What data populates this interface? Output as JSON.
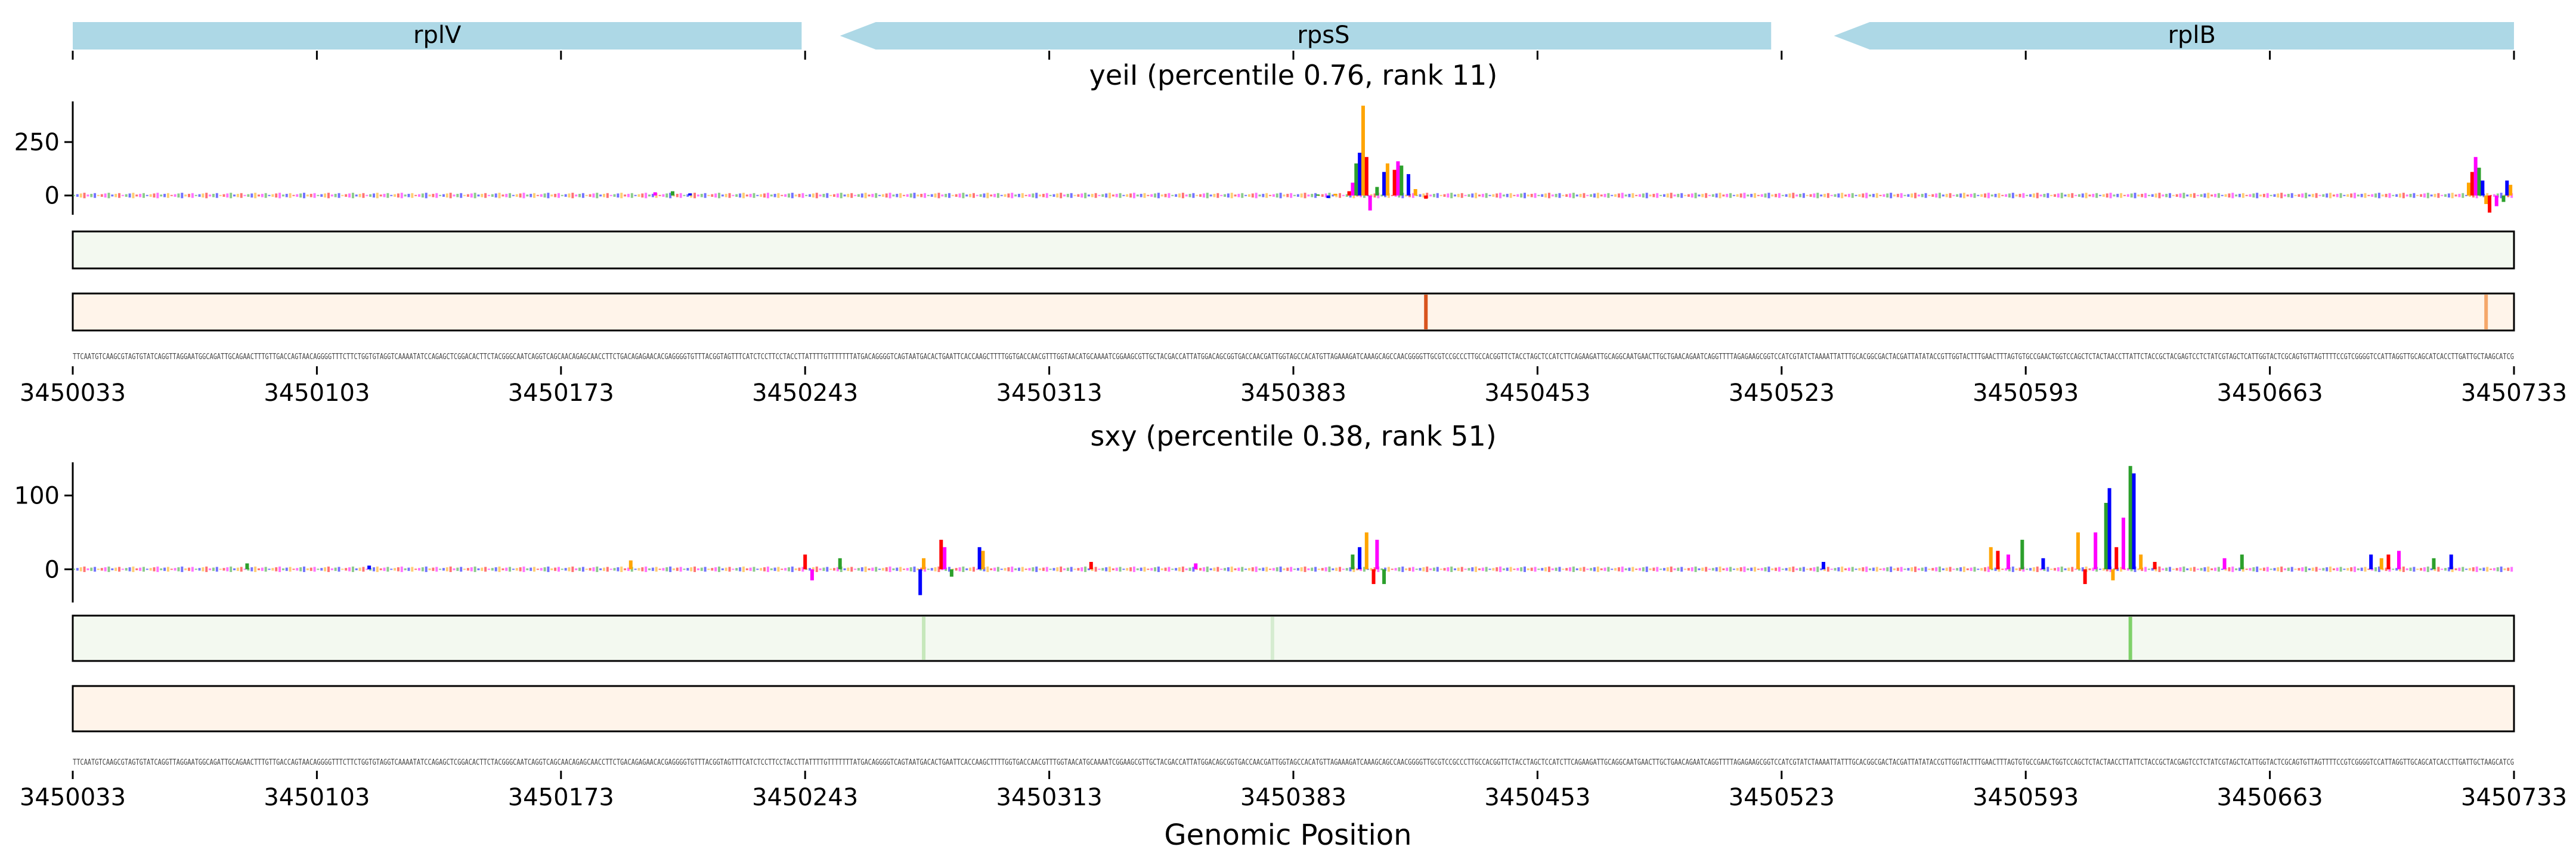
{
  "chart_data": [
    {
      "type": "gene-track",
      "genes": [
        {
          "name": "rplV",
          "start": 3450033,
          "end": 3450242,
          "strand": "+"
        },
        {
          "name": "rpsS",
          "start": 3450253,
          "end": 3450520,
          "strand": "-"
        },
        {
          "name": "rplB",
          "start": 3450538,
          "end": 3450733,
          "strand": "-"
        }
      ],
      "color": "#add8e6"
    },
    {
      "type": "sequence-logo",
      "title": "yeiI (percentile 0.76, rank 11)",
      "x_range": [
        3450033,
        3450733
      ],
      "ylim": [
        -90,
        440
      ],
      "yticks": [
        0,
        250
      ],
      "xticks": [
        3450033,
        3450103,
        3450173,
        3450243,
        3450313,
        3450383,
        3450453,
        3450523,
        3450593,
        3450663,
        3450733
      ],
      "peaks": [
        {
          "x": 3450390,
          "value": 5
        },
        {
          "x": 3450393,
          "value": -12
        },
        {
          "x": 3450395,
          "value": 8
        },
        {
          "x": 3450399,
          "value": 20
        },
        {
          "x": 3450400,
          "value": 60
        },
        {
          "x": 3450401,
          "value": 150
        },
        {
          "x": 3450402,
          "value": 200
        },
        {
          "x": 3450403,
          "value": 420
        },
        {
          "x": 3450404,
          "value": 180
        },
        {
          "x": 3450405,
          "value": -70
        },
        {
          "x": 3450407,
          "value": 40
        },
        {
          "x": 3450409,
          "value": 110
        },
        {
          "x": 3450410,
          "value": 150
        },
        {
          "x": 3450412,
          "value": 120
        },
        {
          "x": 3450413,
          "value": 160
        },
        {
          "x": 3450414,
          "value": 140
        },
        {
          "x": 3450416,
          "value": 100
        },
        {
          "x": 3450418,
          "value": 30
        },
        {
          "x": 3450421,
          "value": -15
        },
        {
          "x": 3450200,
          "value": 15
        },
        {
          "x": 3450205,
          "value": 20
        },
        {
          "x": 3450210,
          "value": 10
        },
        {
          "x": 3450720,
          "value": 60
        },
        {
          "x": 3450721,
          "value": 110
        },
        {
          "x": 3450722,
          "value": 180
        },
        {
          "x": 3450723,
          "value": 130
        },
        {
          "x": 3450724,
          "value": 70
        },
        {
          "x": 3450725,
          "value": -40
        },
        {
          "x": 3450726,
          "value": -80
        },
        {
          "x": 3450728,
          "value": -50
        },
        {
          "x": 3450730,
          "value": -30
        },
        {
          "x": 3450731,
          "value": 70
        },
        {
          "x": 3450732,
          "value": 50
        }
      ],
      "heatmap_tracks": [
        {
          "color": "#f3f9f0",
          "highlights": []
        },
        {
          "color": "#fff4ea",
          "highlights": [
            {
              "x": 3450421,
              "color": "#d9541e"
            },
            {
              "x": 3450725,
              "color": "#f5a76a"
            }
          ]
        }
      ]
    },
    {
      "type": "sequence-logo",
      "title": "sxy (percentile 0.38, rank 51)",
      "x_range": [
        3450033,
        3450733
      ],
      "ylim": [
        -45,
        145
      ],
      "yticks": [
        0,
        100
      ],
      "xticks": [
        3450033,
        3450103,
        3450173,
        3450243,
        3450313,
        3450383,
        3450453,
        3450523,
        3450593,
        3450663,
        3450733
      ],
      "xlabel": "Genomic Position",
      "peaks": [
        {
          "x": 3450083,
          "value": 8
        },
        {
          "x": 3450118,
          "value": 5
        },
        {
          "x": 3450193,
          "value": 12
        },
        {
          "x": 3450243,
          "value": 20
        },
        {
          "x": 3450245,
          "value": -15
        },
        {
          "x": 3450253,
          "value": 15
        },
        {
          "x": 3450276,
          "value": -35
        },
        {
          "x": 3450277,
          "value": 15
        },
        {
          "x": 3450282,
          "value": 40
        },
        {
          "x": 3450283,
          "value": 30
        },
        {
          "x": 3450285,
          "value": -10
        },
        {
          "x": 3450293,
          "value": 30
        },
        {
          "x": 3450294,
          "value": 25
        },
        {
          "x": 3450325,
          "value": 10
        },
        {
          "x": 3450355,
          "value": 8
        },
        {
          "x": 3450400,
          "value": 20
        },
        {
          "x": 3450402,
          "value": 30
        },
        {
          "x": 3450404,
          "value": 50
        },
        {
          "x": 3450406,
          "value": -20
        },
        {
          "x": 3450407,
          "value": 40
        },
        {
          "x": 3450409,
          "value": -20
        },
        {
          "x": 3450535,
          "value": 10
        },
        {
          "x": 3450583,
          "value": 30
        },
        {
          "x": 3450585,
          "value": 25
        },
        {
          "x": 3450588,
          "value": 20
        },
        {
          "x": 3450592,
          "value": 40
        },
        {
          "x": 3450598,
          "value": 15
        },
        {
          "x": 3450608,
          "value": 50
        },
        {
          "x": 3450610,
          "value": -20
        },
        {
          "x": 3450613,
          "value": 50
        },
        {
          "x": 3450616,
          "value": 90
        },
        {
          "x": 3450617,
          "value": 110
        },
        {
          "x": 3450618,
          "value": -15
        },
        {
          "x": 3450619,
          "value": 30
        },
        {
          "x": 3450621,
          "value": 70
        },
        {
          "x": 3450623,
          "value": 140
        },
        {
          "x": 3450624,
          "value": 130
        },
        {
          "x": 3450626,
          "value": 20
        },
        {
          "x": 3450630,
          "value": 10
        },
        {
          "x": 3450650,
          "value": 15
        },
        {
          "x": 3450655,
          "value": 20
        },
        {
          "x": 3450692,
          "value": 20
        },
        {
          "x": 3450695,
          "value": 15
        },
        {
          "x": 3450697,
          "value": 20
        },
        {
          "x": 3450700,
          "value": 25
        },
        {
          "x": 3450710,
          "value": 15
        },
        {
          "x": 3450715,
          "value": 20
        }
      ],
      "heatmap_tracks": [
        {
          "color": "#f3f9f0",
          "highlights": [
            {
              "x": 3450277,
              "color": "#c6e8bb"
            },
            {
              "x": 3450377,
              "color": "#d5ecd0"
            },
            {
              "x": 3450623,
              "color": "#7fd16a"
            }
          ]
        },
        {
          "color": "#fff4ea",
          "highlights": []
        }
      ]
    }
  ],
  "logo_colors": {
    "A": "#2ca02c",
    "C": "#0000ff",
    "G": "#ffa500",
    "T": "#ff0000",
    "extra": "#ff00ff"
  },
  "sequence_track_1": "TTCAATGTCAAGCGTAGTGTATCAGGTTAGGAATGGCAGATTGCAGAACTTTGTTGACCAGTAACAGGGGTTTCTTCTGGTGTAGGTCAAAATATCCAGAGCTCGGACACTTCTACGGGCAATCAGGTCAGCAACAGAGCAACCTTCTGACAGAGAACACGAGGGGTGTTTACGGTAGTTTCATCTCCTTCCTACCTTATTTTGTTTTTTTATGACAGGGGTCAGTAATGACACTGAATTCACCAAGCTTTTGGTGACCAACGTTTGGTAACATGCAAAATCGGAAGCGTTGCTACGACCATTATGGACAGCGGTGACCAACGATTGGTAGCCACATGTTAGAAAGATCAAAGCAGCCAACGGGGTTGCGTCCGCCCTTGCCACGGTTCTACCTAGCTCCATCTTCAGAAGATTGCAGGCAATGAACTTGCTGAACAGAATCAGGTTTTAGAGAAGCGGTCCATCGTATCTAAAATTATTTGCACGGCGACTACGATTATATACCGTTGGTACTTTGAACTTTAGTGTGCCGAACTGGTCCAGCTCTACTAACCTTATTCTACCGCTACGAGTCCTCTATCGTAGCTCATTGGTACTCGCAGTGTTAGTTTTCCGTCGGGGTCCATTAGGTTGCAGCATCACCTTGATTGCTAAGCATCG",
  "sequence_track_2": "TTCAATGTCAAGCGTAGTGTATCAGGTTAGGAATGGCAGATTGCAGAACTTTGTTGACCAGTAACAGGGGTTTCTTCTGGTGTAGGTCAAAATATCCAGAGCTCGGACACTTCTACGGGCAATCAGGTCAGCAACAGAGCAACCTTCTGACAGAGAACACGAGGGGTGTTTACGGTAGTTTCATCTCCTTCCTACCTTATTTTGTTTTTTTATGACAGGGGTCAGTAATGACACTGAATTCACCAAGCTTTTGGTGACCAACGTTTGGTAACATGCAAAATCGGAAGCGTTGCTACGACCATTATGGACAGCGGTGACCAACGATTGGTAGCCACATGTTAGAAAGATCAAAGCAGCCAACGGGGTTGCGTCCGCCCTTGCCACGGTTCTACCTAGCTCCATCTTCAGAAGATTGCAGGCAATGAACTTGCTGAACAGAATCAGGTTTTAGAGAAGCGGTCCATCGTATCTAAAATTATTTGCACGGCGACTACGATTATATACCGTTGGTACTTTGAACTTTAGTGTGCCGAACTGGTCCAGCTCTACTAACCTTATTCTACCGCTACGAGTCCTCTATCGTAGCTCATTGGTACTCGCAGTGTTAGTTTTCCGTCGGGGTCCATTAGGTTGCAGCATCACCTTGATTGCTAAGCATCG"
}
